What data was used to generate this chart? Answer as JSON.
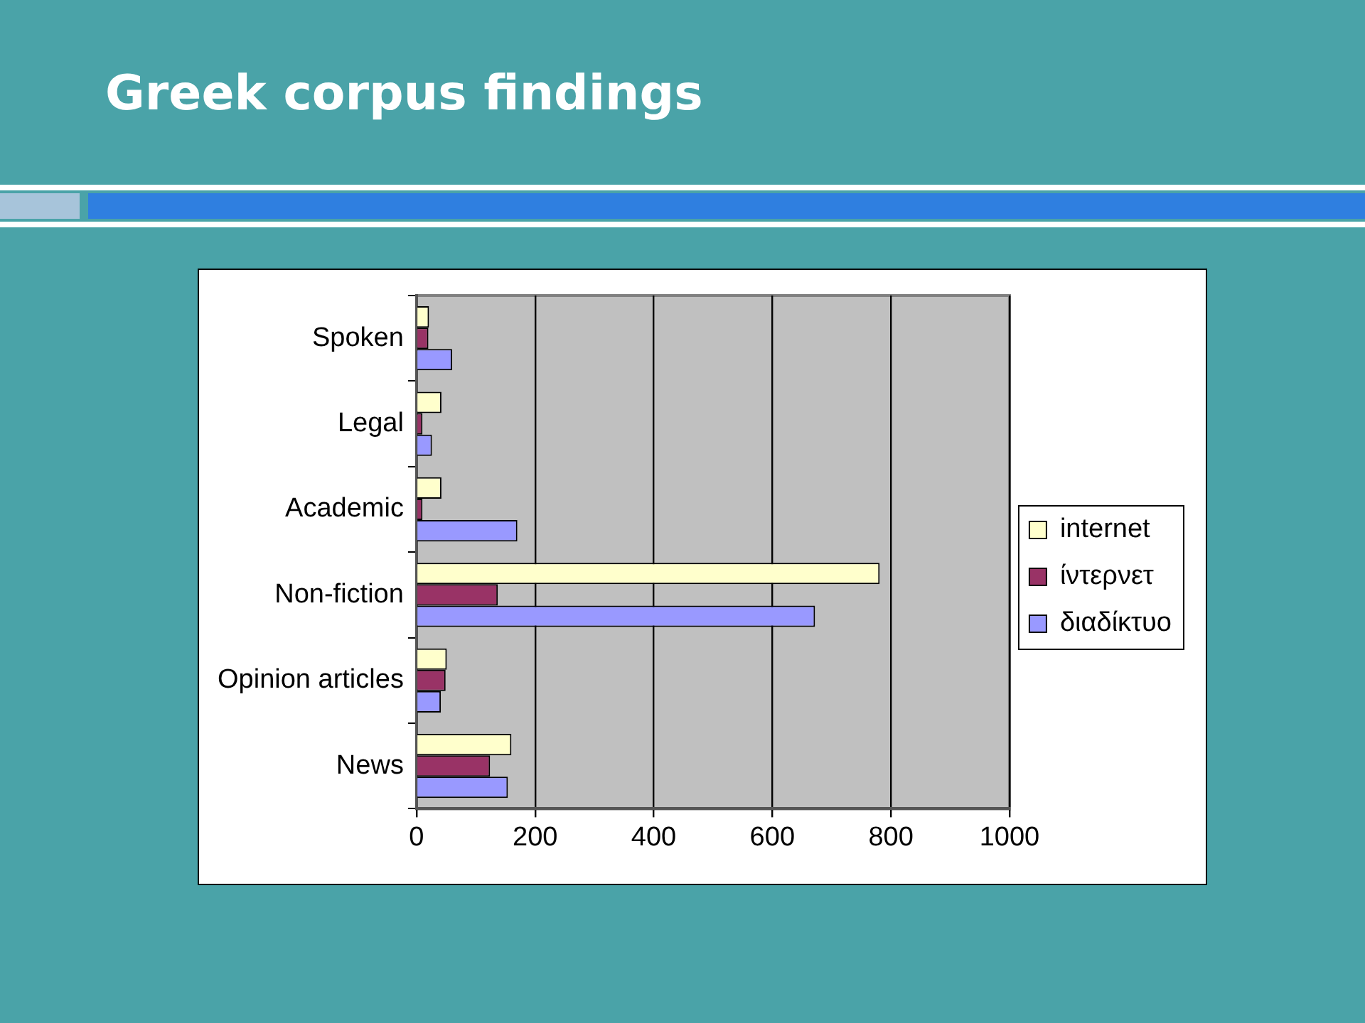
{
  "chart_data": {
    "type": "bar",
    "title": "Greek corpus findings",
    "orientation": "horizontal",
    "categories": [
      "Spoken",
      "Legal",
      "Academic",
      "Non-fiction",
      "Opinion articles",
      "News"
    ],
    "series": [
      {
        "name": "internet",
        "color": "#ffffcc",
        "values": [
          21,
          42,
          42,
          781,
          51,
          160
        ]
      },
      {
        "name": "ίντερνετ",
        "color": "#993366",
        "values": [
          20,
          10,
          10,
          137,
          49,
          124
        ]
      },
      {
        "name": "διαδίκτυο",
        "color": "#9999ff",
        "values": [
          60,
          26,
          170,
          672,
          41,
          154
        ]
      }
    ],
    "xlim": [
      0,
      1000
    ],
    "xticks": [
      0,
      200,
      400,
      600,
      800,
      1000
    ],
    "grid": "x",
    "legend": "right"
  }
}
